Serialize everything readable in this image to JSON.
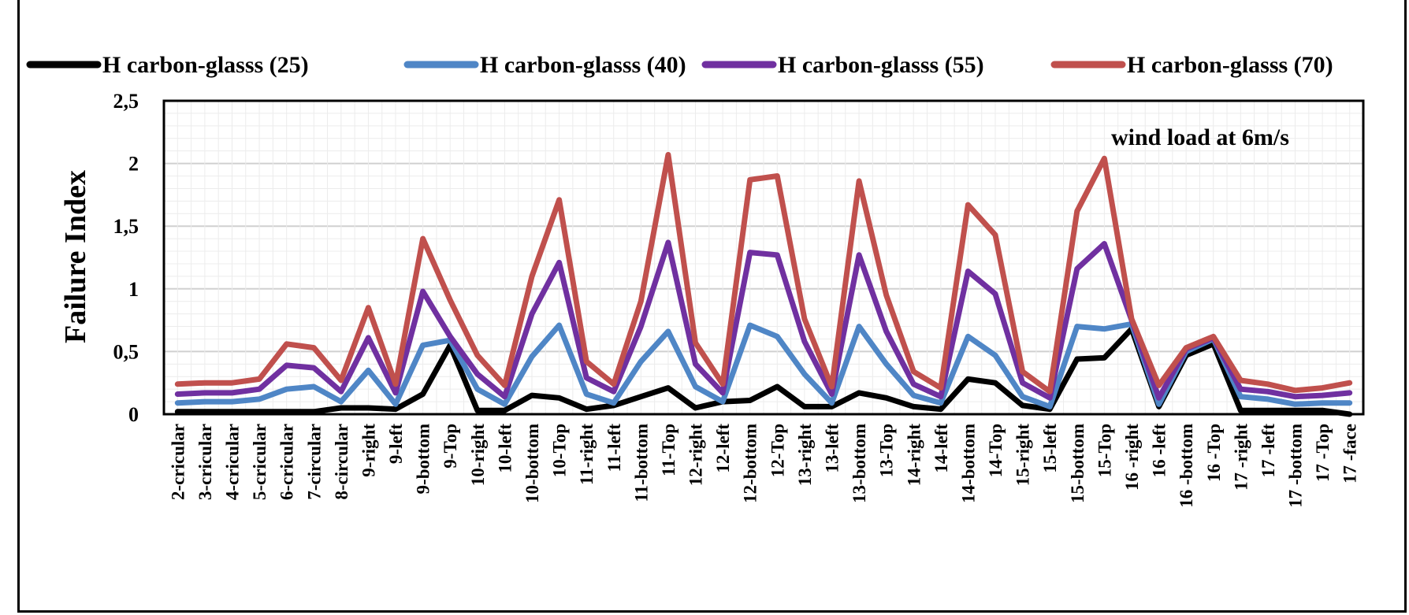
{
  "chart_data": {
    "type": "line",
    "title": "",
    "ylabel": "Failure Index",
    "xlabel": "",
    "annotation": "wind load at 6m/s",
    "ylim": [
      0,
      2.5
    ],
    "yticks": [
      "0",
      "0,5",
      "1",
      "1,5",
      "2",
      "2,5"
    ],
    "grid": true,
    "legend_position": "top",
    "categories": [
      "2-cricular",
      "3-cricular",
      "4-cricular",
      "5-cricular",
      "6-cricular",
      "7-circular",
      "8-circular",
      "9-right",
      "9-left",
      "9-bottom",
      "9-Top",
      "10-right",
      "10-left",
      "10-bottom",
      "10-Top",
      "11-right",
      "11-left",
      "11-bottom",
      "11-Top",
      "12-right",
      "12-left",
      "12-bottom",
      "12-Top",
      "13-right",
      "13-left",
      "13-bottom",
      "13-Top",
      "14-right",
      "14-left",
      "14-bottom",
      "14-Top",
      "15-right",
      "15-left",
      "15-bottom",
      "15-Top",
      "16 -right",
      "16 -left",
      "16 -bottom",
      "16 -Top",
      "17 -right",
      "17 -left",
      "17 -bottom",
      "17 -Top",
      "17 -face"
    ],
    "series": [
      {
        "name": "H carbon-glasss (25)",
        "color": "#000000",
        "values": [
          0.02,
          0.02,
          0.02,
          0.02,
          0.02,
          0.02,
          0.05,
          0.05,
          0.04,
          0.16,
          0.55,
          0.03,
          0.03,
          0.15,
          0.13,
          0.04,
          0.07,
          0.14,
          0.21,
          0.05,
          0.1,
          0.11,
          0.22,
          0.06,
          0.06,
          0.17,
          0.13,
          0.06,
          0.04,
          0.28,
          0.25,
          0.07,
          0.04,
          0.44,
          0.45,
          0.68,
          0.06,
          0.47,
          0.56,
          0.03,
          0.03,
          0.03,
          0.03,
          0.0
        ]
      },
      {
        "name": "H carbon-glasss (40)",
        "color": "#4f86c6",
        "values": [
          0.09,
          0.1,
          0.1,
          0.12,
          0.2,
          0.22,
          0.1,
          0.35,
          0.08,
          0.55,
          0.59,
          0.2,
          0.08,
          0.46,
          0.71,
          0.16,
          0.09,
          0.42,
          0.66,
          0.22,
          0.1,
          0.71,
          0.62,
          0.32,
          0.09,
          0.7,
          0.4,
          0.15,
          0.09,
          0.62,
          0.47,
          0.14,
          0.06,
          0.7,
          0.68,
          0.72,
          0.08,
          0.5,
          0.6,
          0.14,
          0.12,
          0.08,
          0.09,
          0.09
        ]
      },
      {
        "name": "H carbon-glasss (55)",
        "color": "#7030a0",
        "values": [
          0.16,
          0.17,
          0.17,
          0.2,
          0.39,
          0.37,
          0.18,
          0.61,
          0.17,
          0.98,
          0.62,
          0.32,
          0.14,
          0.8,
          1.21,
          0.29,
          0.18,
          0.7,
          1.37,
          0.4,
          0.17,
          1.29,
          1.27,
          0.58,
          0.16,
          1.27,
          0.66,
          0.24,
          0.14,
          1.14,
          0.96,
          0.25,
          0.13,
          1.16,
          1.36,
          0.75,
          0.13,
          0.52,
          0.61,
          0.2,
          0.18,
          0.14,
          0.15,
          0.17
        ]
      },
      {
        "name": "H carbon-glasss (70)",
        "color": "#c0504d",
        "values": [
          0.24,
          0.25,
          0.25,
          0.28,
          0.56,
          0.53,
          0.27,
          0.85,
          0.24,
          1.4,
          0.91,
          0.47,
          0.23,
          1.1,
          1.71,
          0.42,
          0.24,
          0.9,
          2.07,
          0.57,
          0.24,
          1.87,
          1.9,
          0.76,
          0.22,
          1.86,
          0.95,
          0.34,
          0.21,
          1.67,
          1.43,
          0.34,
          0.18,
          1.62,
          2.04,
          0.76,
          0.23,
          0.53,
          0.62,
          0.27,
          0.24,
          0.19,
          0.21,
          0.25
        ]
      }
    ]
  }
}
